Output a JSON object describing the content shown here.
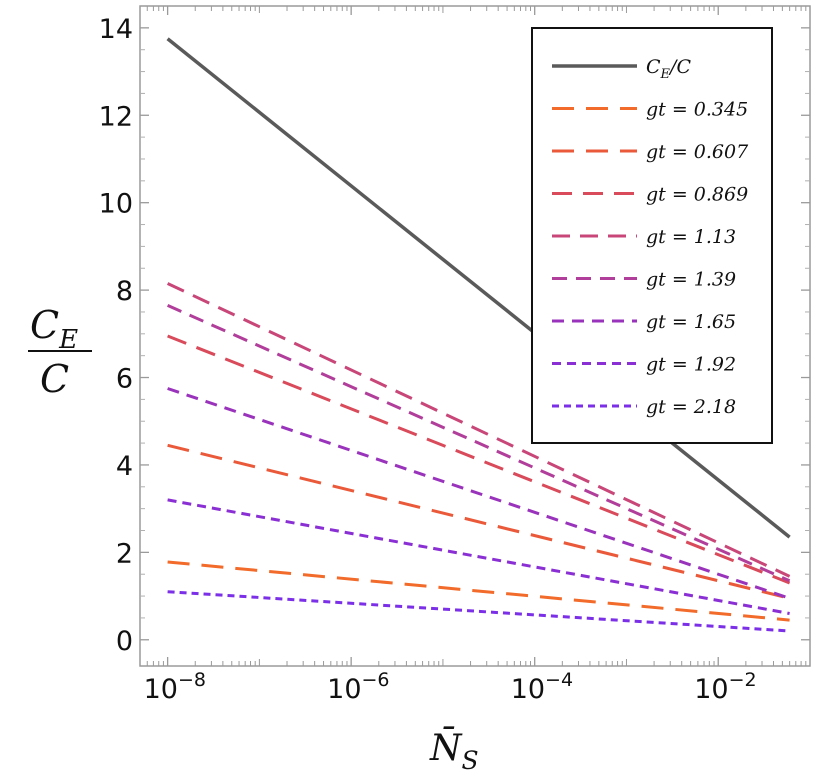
{
  "chart_data": {
    "type": "line",
    "xscale": "log",
    "xlim": [
      5e-09,
      0.1
    ],
    "ylim": [
      -0.6,
      14.5
    ],
    "yticks": [
      0,
      2,
      4,
      6,
      8,
      10,
      12,
      14
    ],
    "ytick_labels": [
      "0",
      "2",
      "4",
      "6",
      "8",
      "10",
      "12",
      "14"
    ],
    "xticks": [
      1e-08,
      1e-06,
      0.0001,
      0.01
    ],
    "xtick_bases": [
      "10",
      "10",
      "10",
      "10"
    ],
    "xtick_exps": [
      "−8",
      "−6",
      "−4",
      "−2"
    ],
    "xlabel_main": "N̄",
    "xlabel_sub": "S",
    "ylabel_top_main": "C",
    "ylabel_top_sub": "E",
    "ylabel_bottom": "C",
    "legend_position": "top-right",
    "series": [
      {
        "name": "C_E/C",
        "label_main": "C",
        "label_sub": "E",
        "label_tail": "/C",
        "color": "#5a5a5a",
        "dash": "",
        "x": [
          1e-08,
          0.06
        ],
        "y": [
          13.75,
          2.35
        ]
      },
      {
        "name": "gt = 0.345",
        "label": "gt = 0.345",
        "color": "#f26b2a",
        "dash": "22,12",
        "x": [
          1e-08,
          0.06
        ],
        "y": [
          1.78,
          0.45
        ]
      },
      {
        "name": "gt = 0.607",
        "label": "gt = 0.607",
        "color": "#ea5a3a",
        "dash": "22,12",
        "x": [
          1e-08,
          0.06
        ],
        "y": [
          4.45,
          0.95
        ]
      },
      {
        "name": "gt = 0.869",
        "label": "gt = 0.869",
        "color": "#d94a5a",
        "dash": "20,11",
        "x": [
          1e-08,
          0.06
        ],
        "y": [
          6.95,
          1.3
        ]
      },
      {
        "name": "gt = 1.13",
        "label": "gt = 1.13",
        "color": "#c84778",
        "dash": "18,10",
        "x": [
          1e-08,
          0.06
        ],
        "y": [
          8.15,
          1.45
        ]
      },
      {
        "name": "gt = 1.39",
        "label": "gt = 1.39",
        "color": "#b13e9a",
        "dash": "15,9",
        "x": [
          1e-08,
          0.06
        ],
        "y": [
          7.65,
          1.35
        ]
      },
      {
        "name": "gt = 1.65",
        "label": "gt = 1.65",
        "color": "#9a33bc",
        "dash": "12,8",
        "x": [
          1e-08,
          0.06
        ],
        "y": [
          5.75,
          0.95
        ]
      },
      {
        "name": "gt = 1.92",
        "label": "gt = 1.92",
        "color": "#8a2fd4",
        "dash": "9,6",
        "x": [
          1e-08,
          0.06
        ],
        "y": [
          3.2,
          0.6
        ]
      },
      {
        "name": "gt = 2.18",
        "label": "gt = 2.18",
        "color": "#7b2fe6",
        "dash": "7,5",
        "x": [
          1e-08,
          0.06
        ],
        "y": [
          1.1,
          0.2
        ]
      }
    ]
  }
}
